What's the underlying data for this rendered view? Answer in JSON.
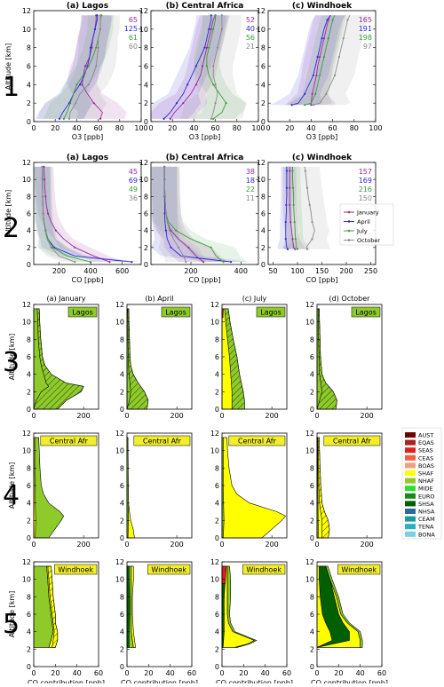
{
  "rows": [
    "1",
    "2",
    "3",
    "4",
    "5"
  ],
  "row1": {
    "panels": [
      {
        "title": "(a) Lagos",
        "counts": [
          "65",
          "125",
          "61",
          "60"
        ]
      },
      {
        "title": "(b) Central Africa",
        "counts": [
          "52",
          "40",
          "56",
          "21"
        ]
      },
      {
        "title": "(c) Windhoek",
        "counts": [
          "165",
          "191",
          "198",
          "97"
        ]
      }
    ],
    "xlabel": "O3 [ppb]",
    "ylabel": "Altitude [km]",
    "xticks": [
      "0",
      "20",
      "40",
      "60",
      "80",
      "100"
    ],
    "yticks": [
      "0",
      "2",
      "4",
      "6",
      "8",
      "10",
      "12"
    ]
  },
  "row2": {
    "panels": [
      {
        "title": "(a) Lagos",
        "counts": [
          "45",
          "69",
          "49",
          "36"
        ]
      },
      {
        "title": "(b) Central Africa",
        "counts": [
          "38",
          "18",
          "22",
          "11"
        ]
      },
      {
        "title": "(c) Windhoek",
        "counts": [
          "157",
          "169",
          "216",
          "150"
        ]
      }
    ],
    "xlabel": "CO [ppb]",
    "ylabel": "Altitude [km]",
    "xticks_a": [
      "200",
      "400",
      "600"
    ],
    "xticks_b": [
      "200",
      "400"
    ],
    "xticks_c": [
      "50",
      "100",
      "150",
      "200",
      "250"
    ],
    "yticks": [
      "0",
      "2",
      "4",
      "6",
      "8",
      "10",
      "12"
    ],
    "legend": [
      "January",
      "April",
      "July",
      "October"
    ]
  },
  "contrib": {
    "col_titles": [
      "(a) January",
      "(b) April",
      "(c) July",
      "(d) October"
    ],
    "row_sites": [
      "Lagos",
      "Central Afr",
      "Windhoek"
    ],
    "ylabel": "Altitude [km]",
    "xlabel": "CO contribution [ppb]",
    "xticks_r34": [
      "0",
      "200"
    ],
    "xticks_r5": [
      "0",
      "20",
      "40",
      "60"
    ],
    "yticks": [
      "0",
      "2",
      "4",
      "6",
      "8",
      "10",
      "12"
    ],
    "legend": [
      "AUST",
      "EQAS",
      "SEAS",
      "CEAS",
      "BOAS",
      "SHAF",
      "NHAF",
      "MIDE",
      "EURO",
      "SHSA",
      "NHSA",
      "CEAM",
      "TENA",
      "BONA"
    ]
  },
  "colors": {
    "january": "#9a2a9a",
    "april": "#2a2ad6",
    "july": "#3aa03a",
    "october": "#8a8a8a",
    "badge_bg": "#f2ee2a",
    "region": [
      "#6b0000",
      "#b02020",
      "#e02020",
      "#f06040",
      "#f0a080",
      "#ffff00",
      "#8ecb2a",
      "#2ee02e",
      "#1a8a1a",
      "#006000",
      "#2a6a9a",
      "#1a9a9a",
      "#2ab0c0",
      "#7ad0e0"
    ]
  },
  "chart_data": [
    {
      "type": "line",
      "title": "(a) Lagos",
      "xlabel": "O3 [ppb]",
      "ylabel": "Altitude [km]",
      "xlim": [
        0,
        100
      ],
      "ylim": [
        0,
        12
      ],
      "x": [
        0.3,
        1,
        2,
        3,
        4,
        5,
        6,
        7,
        8,
        9,
        10,
        11,
        11.5
      ],
      "series": [
        {
          "name": "January",
          "values": [
            62,
            64,
            56,
            50,
            45,
            46,
            48,
            52,
            54,
            55,
            57,
            58,
            58
          ]
        },
        {
          "name": "April",
          "values": [
            24,
            27,
            33,
            37,
            43,
            47,
            50,
            52,
            53,
            55,
            57,
            59,
            59
          ]
        },
        {
          "name": "July",
          "values": [
            28,
            31,
            34,
            37,
            40,
            46,
            51,
            55,
            58,
            60,
            62,
            62,
            63
          ]
        },
        {
          "name": "October",
          "values": [
            33,
            34,
            39,
            43,
            51,
            55,
            58,
            59,
            60,
            60,
            62,
            62,
            62
          ]
        }
      ]
    },
    {
      "type": "line",
      "title": "(b) Central Africa",
      "xlabel": "O3 [ppb]",
      "ylabel": "Altitude [km]",
      "xlim": [
        0,
        100
      ],
      "ylim": [
        0,
        12
      ],
      "x": [
        0.3,
        1,
        2,
        3,
        4,
        5,
        6,
        7,
        8,
        9,
        10,
        11,
        11.5
      ],
      "series": [
        {
          "name": "January",
          "values": [
            18,
            22,
            30,
            37,
            42,
            46,
            48,
            50,
            52,
            54,
            56,
            58,
            60
          ]
        },
        {
          "name": "April",
          "values": [
            12,
            18,
            24,
            30,
            34,
            38,
            42,
            46,
            50,
            52,
            54,
            56,
            56
          ]
        },
        {
          "name": "July",
          "values": [
            58,
            66,
            70,
            64,
            58,
            54,
            52,
            52,
            54,
            56,
            58,
            60,
            60
          ]
        },
        {
          "name": "October",
          "values": [
            56,
            58,
            60,
            62,
            60,
            58,
            58,
            60,
            62,
            64,
            66,
            66,
            66
          ]
        }
      ]
    },
    {
      "type": "line",
      "title": "(c) Windhoek",
      "xlabel": "O3 [ppb]",
      "ylabel": "Altitude [km]",
      "xlim": [
        0,
        100
      ],
      "ylim": [
        0,
        12
      ],
      "x": [
        1.8,
        2,
        3,
        4,
        5,
        6,
        7,
        8,
        9,
        10,
        11,
        11.5
      ],
      "series": [
        {
          "name": "January",
          "values": [
            40,
            40,
            41,
            43,
            45,
            46,
            48,
            50,
            52,
            54,
            56,
            58
          ]
        },
        {
          "name": "April",
          "values": [
            22,
            28,
            34,
            38,
            42,
            44,
            46,
            48,
            50,
            52,
            55,
            58
          ]
        },
        {
          "name": "July",
          "values": [
            34,
            40,
            44,
            46,
            48,
            50,
            52,
            54,
            56,
            58,
            60,
            62
          ]
        },
        {
          "name": "October",
          "values": [
            42,
            48,
            54,
            58,
            62,
            64,
            66,
            68,
            70,
            72,
            74,
            76
          ]
        }
      ]
    },
    {
      "type": "line",
      "title": "(a) Lagos",
      "xlabel": "CO [ppb]",
      "ylabel": "Altitude [km]",
      "xlim": [
        40,
        720
      ],
      "ylim": [
        0,
        12
      ],
      "x": [
        0.3,
        1,
        2,
        3,
        4,
        5,
        6,
        7,
        8,
        9,
        10,
        11,
        11.5
      ],
      "series": [
        {
          "name": "January",
          "values": [
            520,
            420,
            300,
            230,
            180,
            150,
            130,
            120,
            115,
            110,
            108,
            105,
            105
          ]
        },
        {
          "name": "April",
          "values": [
            660,
            300,
            170,
            130,
            115,
            105,
            100,
            98,
            96,
            95,
            95,
            94,
            94
          ]
        },
        {
          "name": "July",
          "values": [
            400,
            250,
            160,
            130,
            115,
            105,
            100,
            98,
            96,
            95,
            95,
            94,
            94
          ]
        },
        {
          "name": "October",
          "values": [
            300,
            200,
            150,
            125,
            112,
            104,
            100,
            98,
            96,
            95,
            95,
            94,
            94
          ]
        }
      ]
    },
    {
      "type": "line",
      "title": "(b) Central Africa",
      "xlabel": "CO [ppb]",
      "ylabel": "Altitude [km]",
      "xlim": [
        40,
        470
      ],
      "ylim": [
        0,
        12
      ],
      "x": [
        0.3,
        1,
        2,
        3,
        4,
        5,
        6,
        7,
        8,
        9,
        10,
        11,
        11.5
      ],
      "series": [
        {
          "name": "January",
          "values": [
            250,
            220,
            190,
            150,
            120,
            105,
            100,
            98,
            96,
            95,
            95,
            94,
            94
          ]
        },
        {
          "name": "April",
          "values": [
            360,
            160,
            120,
            105,
            100,
            96,
            95,
            95,
            94,
            94,
            94,
            94,
            94
          ]
        },
        {
          "name": "July",
          "values": [
            330,
            300,
            280,
            200,
            140,
            110,
            100,
            98,
            96,
            95,
            95,
            94,
            94
          ]
        },
        {
          "name": "October",
          "values": [
            180,
            170,
            150,
            130,
            115,
            105,
            100,
            98,
            96,
            95,
            95,
            94,
            94
          ]
        }
      ]
    },
    {
      "type": "line",
      "title": "(c) Windhoek",
      "xlabel": "CO [ppb]",
      "ylabel": "Altitude [km]",
      "xlim": [
        40,
        260
      ],
      "ylim": [
        0,
        12
      ],
      "x": [
        1.8,
        2,
        3,
        4,
        5,
        6,
        7,
        8,
        9,
        10,
        11,
        11.5
      ],
      "series": [
        {
          "name": "January",
          "values": [
            95,
            92,
            90,
            88,
            86,
            85,
            84,
            84,
            84,
            84,
            84,
            84
          ]
        },
        {
          "name": "April",
          "values": [
            80,
            78,
            76,
            76,
            76,
            77,
            77,
            78,
            78,
            78,
            78,
            78
          ]
        },
        {
          "name": "July",
          "values": [
            100,
            98,
            96,
            95,
            94,
            93,
            92,
            92,
            91,
            90,
            90,
            90
          ]
        },
        {
          "name": "October",
          "values": [
            120,
            118,
            130,
            135,
            130,
            128,
            125,
            122,
            120,
            118,
            116,
            115
          ]
        }
      ]
    }
  ]
}
